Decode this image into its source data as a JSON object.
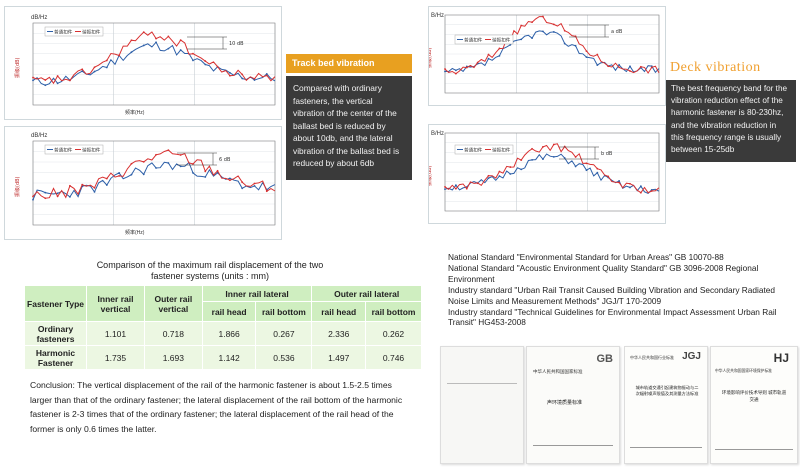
{
  "track_bed": {
    "title": "Track bed vibration",
    "description": "Compared with ordinary fasteners, the vertical vibration of the center of the ballast bed is reduced by about 10db, and the lateral vibration of the ballast bed is reduced by about 6db"
  },
  "deck": {
    "title": "Deck vibration",
    "description": "The best frequency band for the vibration reduction effect of the harmonic fastener is 80-230hz, and the vibration reduction in this frequency range is usually between 15-25db"
  },
  "charts": {
    "unit_label": "dB/Hz",
    "unit_label_short": "B/Hz",
    "x_label": "频率(Hz)",
    "y_label": "振级(dB)",
    "legend_a": "普通扣件",
    "legend_b": "谐振扣件",
    "annotation_10": "10 dB",
    "annotation_6": "6 dB",
    "annotation_a": "a dB",
    "annotation_b": "b dB"
  },
  "comparison": {
    "title_line1": "Comparison of the maximum rail displacement of the two",
    "title_line2": "fastener systems (units : mm)",
    "headers": {
      "fastener_type": "Fastener Type",
      "inner_rail_vertical": "Inner rail vertical",
      "outer_rail_vertical": "Outer rail vertical",
      "inner_rail_lateral": "Inner rail lateral",
      "outer_rail_lateral": "Outer rail lateral",
      "rail_head": "rail head",
      "rail_bottom": "rail bottom"
    },
    "rows": [
      {
        "type": "Ordinary fasteners",
        "values": [
          "1.101",
          "0.718",
          "1.866",
          "0.267",
          "2.336",
          "0.262"
        ]
      },
      {
        "type": "Harmonic Fastener",
        "values": [
          "1.735",
          "1.693",
          "1.142",
          "0.536",
          "1.497",
          "0.746"
        ]
      }
    ],
    "conclusion": "Conclusion: The vertical displacement of the rail of the harmonic fastener is about 1.5-2.5 times larger than that of the ordinary fastener; the lateral displacement of the rail bottom of the harmonic fastener is 2-3 times that of the ordinary fastener; the lateral displacement of the rail head of the former is only 0.6 times the latter."
  },
  "standards": [
    "National Standard \"Environmental Standard for Urban Areas\" GB 10070-88",
    "National Standard \"Acoustic Environment Quality Standard\" GB 3096-2008 Regional Environment",
    "Industry standard \"Urban Rail Transit Caused Building Vibration and Secondary Radiated Noise Limits and Measurement Methods\" JGJ/T 170-2009",
    "Industry standard \"Technical Guidelines for Environmental Impact Assessment Urban Rail Transit\" HG453-2008"
  ],
  "documents": {
    "gb_logo": "GB",
    "gb_header": "中华人民共和国国家标准",
    "gb_title": "声环境质量标准",
    "jgj_logo": "JGJ",
    "jgj_header": "中华人民共和国行业标准",
    "jgj_title": "城市轨道交通引起建筑物振动与二次辐射噪声限值及其测量方法标准",
    "hj_logo": "HJ",
    "hj_header": "中华人民共和国国家环境保护标准",
    "hj_title": "环境影响评价技术导则 城市轨道交通"
  },
  "colors": {
    "series_ordinary": "#2d5fa8",
    "series_harmonic": "#d83030",
    "accent_orange": "#e8a020",
    "dark_panel": "#3a3a3a",
    "table_header": "#cfeec0",
    "table_body": "#ecf7e2"
  }
}
